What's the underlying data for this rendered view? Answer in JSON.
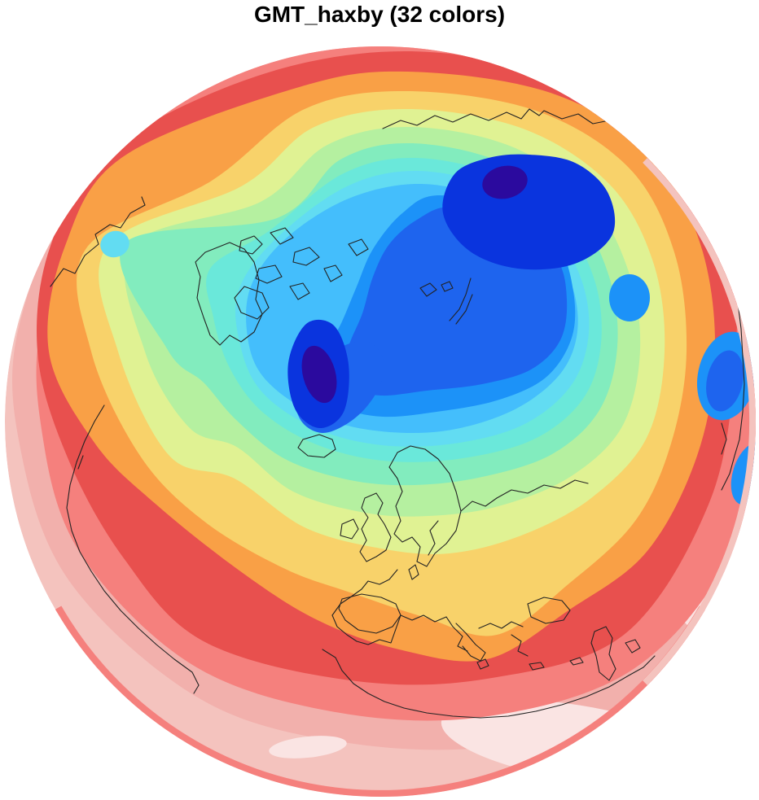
{
  "title": "GMT_haxby (32 colors)",
  "colormap": {
    "name": "GMT_haxby",
    "total_colors": 32,
    "coastline_color": "#232323",
    "background": "#FFFFFF",
    "bands": [
      {
        "name": "pale-pink",
        "color": "#F4C3BE"
      },
      {
        "name": "palest-pink",
        "color": "#FAE4E3"
      },
      {
        "name": "pink",
        "color": "#F2B0AC"
      },
      {
        "name": "salmon",
        "color": "#F5807D"
      },
      {
        "name": "red",
        "color": "#E8504E"
      },
      {
        "name": "orange",
        "color": "#F9A046"
      },
      {
        "name": "amber",
        "color": "#F8D26A"
      },
      {
        "name": "yellow-green",
        "color": "#E0F293"
      },
      {
        "name": "light-green",
        "color": "#B5F0A0"
      },
      {
        "name": "mint",
        "color": "#82ECBE"
      },
      {
        "name": "turquoise",
        "color": "#6AE8DA"
      },
      {
        "name": "cyan",
        "color": "#62DCF2"
      },
      {
        "name": "sky-blue",
        "color": "#44BEFC"
      },
      {
        "name": "medium-blue",
        "color": "#1C92F8"
      },
      {
        "name": "royal-blue",
        "color": "#1E64EE"
      },
      {
        "name": "dark-blue",
        "color": "#0A34DE"
      },
      {
        "name": "indigo",
        "color": "#2B0A9E"
      }
    ]
  },
  "map": {
    "projection": "orthographic globe",
    "depicted_region": "Arctic, Europe, North Atlantic with coastlines"
  }
}
